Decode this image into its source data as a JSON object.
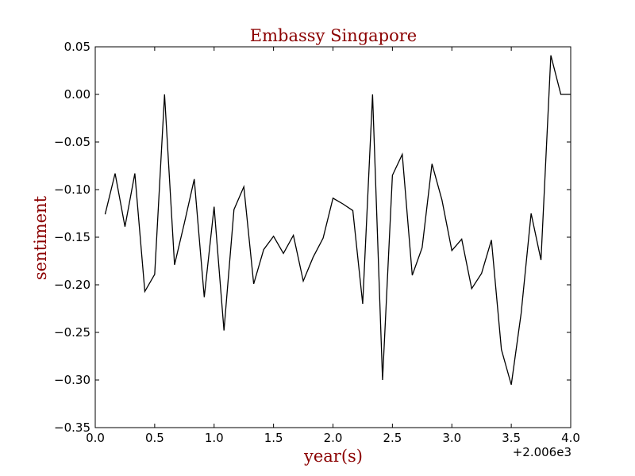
{
  "chart_data": {
    "type": "line",
    "title": "Embassy Singapore",
    "xlabel": "year(s)",
    "ylabel": "sentiment",
    "x_offset_label": "+2.006e3",
    "xlim": [
      0.0,
      4.0
    ],
    "ylim": [
      -0.35,
      0.05
    ],
    "xticks": [
      0.0,
      0.5,
      1.0,
      1.5,
      2.0,
      2.5,
      3.0,
      3.5,
      4.0
    ],
    "xtick_labels": [
      "0.0",
      "0.5",
      "1.0",
      "1.5",
      "2.0",
      "2.5",
      "3.0",
      "3.5",
      "4.0"
    ],
    "yticks": [
      0.05,
      0.0,
      -0.05,
      -0.1,
      -0.15,
      -0.2,
      -0.25,
      -0.3,
      -0.35
    ],
    "ytick_labels": [
      "0.05",
      "0.00",
      "−0.05",
      "−0.10",
      "−0.15",
      "−0.20",
      "−0.25",
      "−0.30",
      "−0.35"
    ],
    "grid": false,
    "series": [
      {
        "color": "#000000",
        "x": [
          0.083,
          0.167,
          0.25,
          0.333,
          0.417,
          0.5,
          0.583,
          0.667,
          0.75,
          0.833,
          0.917,
          1.0,
          1.083,
          1.167,
          1.25,
          1.333,
          1.417,
          1.5,
          1.583,
          1.667,
          1.75,
          1.833,
          1.917,
          2.0,
          2.083,
          2.167,
          2.25,
          2.333,
          2.417,
          2.5,
          2.583,
          2.667,
          2.75,
          2.833,
          2.917,
          3.0,
          3.083,
          3.167,
          3.25,
          3.333,
          3.417,
          3.5,
          3.583,
          3.667,
          3.75,
          3.833,
          3.917,
          4.0
        ],
        "y": [
          -0.126,
          -0.083,
          -0.139,
          -0.083,
          -0.207,
          -0.189,
          0.0,
          -0.179,
          -0.135,
          -0.089,
          -0.213,
          -0.118,
          -0.248,
          -0.121,
          -0.097,
          -0.199,
          -0.163,
          -0.149,
          -0.167,
          -0.148,
          -0.196,
          -0.171,
          -0.151,
          -0.109,
          -0.115,
          -0.122,
          -0.22,
          0.0,
          -0.3,
          -0.085,
          -0.063,
          -0.19,
          -0.161,
          -0.073,
          -0.111,
          -0.164,
          -0.152,
          -0.204,
          -0.188,
          -0.153,
          -0.268,
          -0.305,
          -0.23,
          -0.125,
          -0.174,
          0.041,
          0.0,
          0.0
        ]
      }
    ]
  },
  "colors": {
    "title": "#8b0000",
    "axis_label": "#8b0000",
    "line": "#000000",
    "axes": "#000000",
    "background": "#ffffff"
  }
}
